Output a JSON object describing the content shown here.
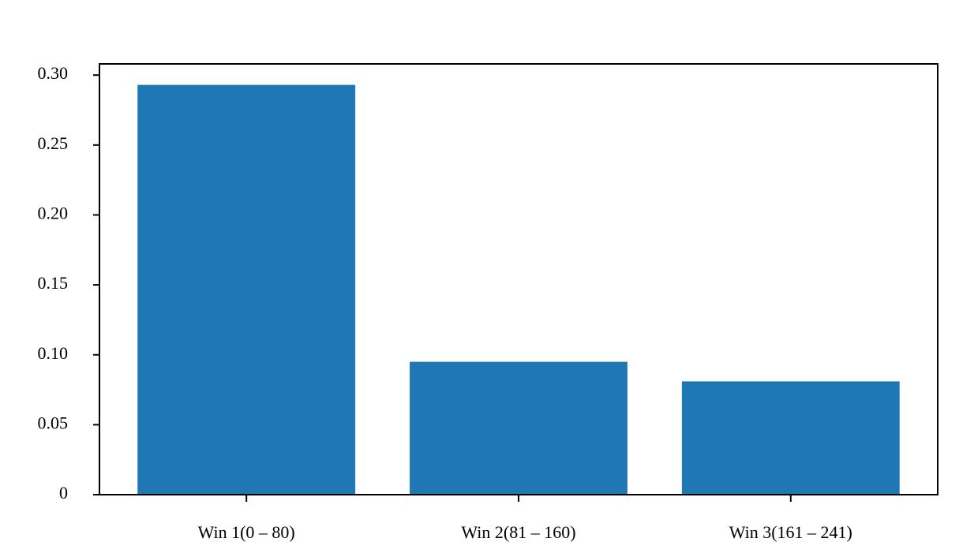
{
  "chart_data": {
    "type": "bar",
    "categories": [
      "Win 1(0 – 80)",
      "Win 2(81 – 160)",
      "Win 3(161 – 241)"
    ],
    "values": [
      0.293,
      0.095,
      0.081
    ],
    "color": "#1f77b4",
    "ylim": [
      0,
      0.308
    ],
    "yticks": [
      {
        "value": 0,
        "label": "0"
      },
      0.05,
      {
        "value": 0.1,
        "label": "0.10"
      },
      0.15,
      {
        "value": 0.2,
        "label": "0.20"
      },
      0.25,
      {
        "value": 0.3,
        "label": "0.30"
      }
    ],
    "grid": false
  }
}
